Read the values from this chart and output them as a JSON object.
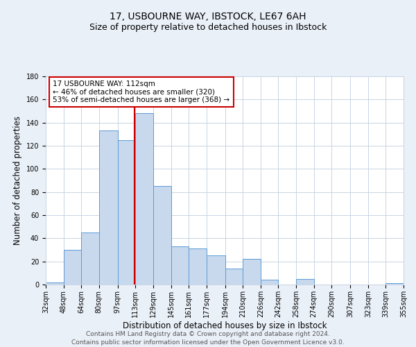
{
  "title": "17, USBOURNE WAY, IBSTOCK, LE67 6AH",
  "subtitle": "Size of property relative to detached houses in Ibstock",
  "xlabel": "Distribution of detached houses by size in Ibstock",
  "ylabel": "Number of detached properties",
  "bin_labels": [
    "32sqm",
    "48sqm",
    "64sqm",
    "80sqm",
    "97sqm",
    "113sqm",
    "129sqm",
    "145sqm",
    "161sqm",
    "177sqm",
    "194sqm",
    "210sqm",
    "226sqm",
    "242sqm",
    "258sqm",
    "274sqm",
    "290sqm",
    "307sqm",
    "323sqm",
    "339sqm",
    "355sqm"
  ],
  "bin_edges": [
    32,
    48,
    64,
    80,
    97,
    113,
    129,
    145,
    161,
    177,
    194,
    210,
    226,
    242,
    258,
    274,
    290,
    307,
    323,
    339,
    355
  ],
  "bar_values": [
    2,
    30,
    45,
    133,
    125,
    148,
    85,
    33,
    31,
    25,
    14,
    22,
    4,
    0,
    5,
    0,
    0,
    0,
    0,
    1
  ],
  "bar_color": "#c8d9ee",
  "bar_edge_color": "#5b9bd5",
  "property_value": 112,
  "property_line_color": "#cc0000",
  "annotation_title": "17 USBOURNE WAY: 112sqm",
  "annotation_line1": "← 46% of detached houses are smaller (320)",
  "annotation_line2": "53% of semi-detached houses are larger (368) →",
  "annotation_box_edge": "#cc0000",
  "annotation_box_face": "white",
  "ylim": [
    0,
    180
  ],
  "yticks": [
    0,
    20,
    40,
    60,
    80,
    100,
    120,
    140,
    160,
    180
  ],
  "footer_line1": "Contains HM Land Registry data © Crown copyright and database right 2024.",
  "footer_line2": "Contains public sector information licensed under the Open Government Licence v3.0.",
  "background_color": "#eaf0f8",
  "plot_background_color": "white",
  "grid_color": "#c8d4e3",
  "title_fontsize": 10,
  "subtitle_fontsize": 9,
  "xlabel_fontsize": 8.5,
  "ylabel_fontsize": 8.5,
  "tick_fontsize": 7,
  "footer_fontsize": 6.5,
  "annotation_fontsize": 7.5
}
